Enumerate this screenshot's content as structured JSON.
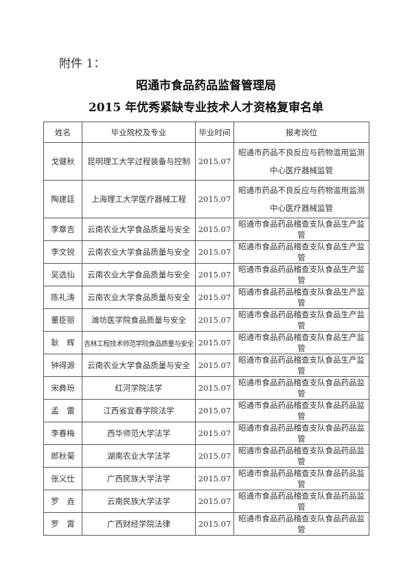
{
  "attachment_label": "附件 1：",
  "title_line1": "昭通市食品药品监督管理局",
  "title_line2": "2015 年优秀紧缺专业技术人才资格复审名单",
  "table": {
    "headers": [
      "姓名",
      "毕业院校及专业",
      "毕业时间",
      "报考岗位"
    ],
    "rows": [
      [
        "戈健秋",
        "昆明理工大学过程装备与控制",
        "2015.07",
        "昭通市药品不良反应与药物滥用监测中心医疗器械监管"
      ],
      [
        "陶建廷",
        "上海理工大学医疗器械工程",
        "2015.07",
        "昭通市药品不良反应与药物滥用监测中心医疗器械监管"
      ],
      [
        "李章吉",
        "云南农业大学食品质量与安全",
        "2015.07",
        "昭通市食品药品稽查支队食品生产监管"
      ],
      [
        "李文锐",
        "云南农业大学食品质量与安全",
        "2015.07",
        "昭通市食品药品稽查支队食品生产监管"
      ],
      [
        "吴选仙",
        "云南农业大学食品质量与安全",
        "2015.07",
        "昭通市食品药品稽查支队食品生产监管"
      ],
      [
        "陈礼涛",
        "云南农业大学食品质量与安全",
        "2015.07",
        "昭通市食品药品稽查支队食品生产监管"
      ],
      [
        "董臣丽",
        "潍坊医学院食品质量与安全",
        "2015.07",
        "昭通市食品药品稽查支队食品生产监管"
      ],
      [
        "耿　辉",
        "吉林工程技术师范学院食品质量与安全",
        "2015.07",
        "昭通市食品药品稽查支队食品生产监管"
      ],
      [
        "钟得源",
        "云南农业大学食品质量与安全",
        "2015.07",
        "昭通市食品药品稽查支队食品生产监管"
      ],
      [
        "宋彝玢",
        "红河学院法学",
        "2015.07",
        "昭通市食品药品稽查支队食品药品监管"
      ],
      [
        "孟　雷",
        "江西省宜春学院法学",
        "2015.07",
        "昭通市食品药品稽查支队食品药品监管"
      ],
      [
        "李春梅",
        "西华师范大学法学",
        "2015.07",
        "昭通市食品药品稽查支队食品药品监管"
      ],
      [
        "郎秋菊",
        "湖南农业大学法学",
        "2015.07",
        "昭通市食品药品稽查支队食品药品监管"
      ],
      [
        "张义仕",
        "广西民族大学法学",
        "2015.07",
        "昭通市食品药品稽查支队食品药品监管"
      ],
      [
        "罗　垚",
        "云南民族大学法学",
        "2015.07",
        "昭通市食品药品稽查支队食品药品监管"
      ],
      [
        "罗　霄",
        "广西财经学院法律",
        "2015.07",
        "昭通市食品药品稽查支队食品药品监管"
      ]
    ]
  }
}
